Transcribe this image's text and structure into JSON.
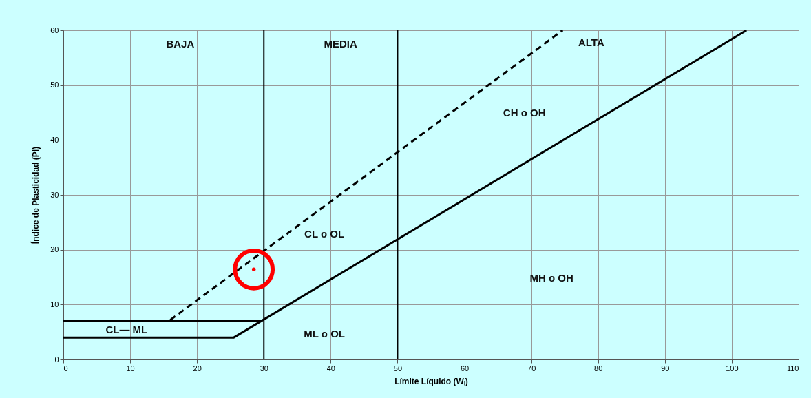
{
  "chart_data": {
    "type": "line",
    "xlabel": "Límite Líquido (Wₗ)",
    "ylabel": "Índice de Plasticidad (PI)",
    "xlim": [
      0,
      110
    ],
    "xticks": [
      0,
      10,
      20,
      30,
      40,
      50,
      60,
      70,
      80,
      90,
      100,
      110
    ],
    "ylim": [
      0,
      60
    ],
    "yticks": [
      0,
      10,
      20,
      30,
      40,
      50,
      60
    ],
    "grid": true,
    "series": [
      {
        "color": "#000000",
        "line_style": "solid",
        "x": [
          0,
          25.5,
          102.2
        ],
        "values": [
          4,
          4,
          60
        ]
      },
      {
        "color": "#000000",
        "line_style": "solid",
        "x": [
          0,
          29.6
        ],
        "values": [
          7,
          7
        ]
      },
      {
        "color": "#000000",
        "line_style": "dashed",
        "x": [
          16,
          74.7
        ],
        "values": [
          7.2,
          60
        ]
      },
      {
        "type": "scatter",
        "color": "#ff0000",
        "marker": "circle",
        "x": [
          28.5
        ],
        "values": [
          16.4
        ]
      }
    ],
    "ref_lines": [
      {
        "axis": "x",
        "value": 30,
        "color": "#000000"
      },
      {
        "axis": "x",
        "value": 50,
        "color": "#000000"
      }
    ],
    "annotations": [
      "BAJA",
      "MEDIA",
      "ALTA",
      "CH  o OH",
      "CL  o  OL",
      "MH  o OH",
      "ML  o  OL",
      "CL— ML"
    ]
  }
}
